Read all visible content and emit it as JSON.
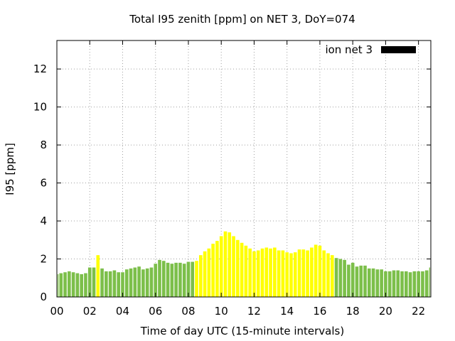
{
  "chart_data": {
    "type": "bar",
    "title": "Total I95 zenith [ppm] on NET 3, DoY=074",
    "xlabel": "Time of day UTC (15-minute intervals)",
    "ylabel": "I95 [ppm]",
    "x_tick_labels": [
      "00",
      "02",
      "04",
      "06",
      "08",
      "10",
      "12",
      "14",
      "16",
      "18",
      "20",
      "22"
    ],
    "x_tick_hours": [
      0,
      2,
      4,
      6,
      8,
      10,
      12,
      14,
      16,
      18,
      20,
      22
    ],
    "xlim": [
      0,
      22.75
    ],
    "ylim": [
      0,
      13.5
    ],
    "y_ticks": [
      0,
      2,
      4,
      6,
      8,
      10,
      12
    ],
    "grid": true,
    "legend": {
      "label": "ion net 3",
      "color": "#000000",
      "position": "top-right"
    },
    "interval_hours": 0.25,
    "bar_width_fraction": 0.8,
    "colors": {
      "green": "#7cbf4a",
      "yellow": "#ffff00"
    },
    "series": [
      {
        "name": "ion net 3",
        "start_hour": 0,
        "values": [
          1.2,
          1.25,
          1.3,
          1.35,
          1.3,
          1.25,
          1.2,
          1.25,
          1.55,
          1.55,
          2.2,
          1.5,
          1.35,
          1.35,
          1.4,
          1.3,
          1.3,
          1.45,
          1.5,
          1.55,
          1.6,
          1.45,
          1.5,
          1.55,
          1.75,
          1.95,
          1.9,
          1.8,
          1.75,
          1.8,
          1.8,
          1.75,
          1.85,
          1.85,
          1.9,
          2.2,
          2.4,
          2.55,
          2.8,
          2.95,
          3.2,
          3.45,
          3.4,
          3.2,
          3.0,
          2.85,
          2.7,
          2.55,
          2.4,
          2.45,
          2.55,
          2.6,
          2.55,
          2.6,
          2.45,
          2.45,
          2.35,
          2.3,
          2.35,
          2.5,
          2.5,
          2.45,
          2.6,
          2.75,
          2.7,
          2.45,
          2.3,
          2.2,
          2.05,
          2.0,
          1.95,
          1.7,
          1.8,
          1.6,
          1.65,
          1.65,
          1.5,
          1.5,
          1.45,
          1.45,
          1.35,
          1.35,
          1.4,
          1.4,
          1.35,
          1.35,
          1.3,
          1.35,
          1.35,
          1.35,
          1.4,
          1.55
        ],
        "colors_by_bar": [
          "green",
          "green",
          "green",
          "green",
          "green",
          "green",
          "green",
          "green",
          "green",
          "green",
          "yellow",
          "green",
          "green",
          "green",
          "green",
          "green",
          "green",
          "green",
          "green",
          "green",
          "green",
          "green",
          "green",
          "green",
          "green",
          "green",
          "green",
          "green",
          "green",
          "green",
          "green",
          "green",
          "green",
          "green",
          "yellow",
          "yellow",
          "yellow",
          "yellow",
          "yellow",
          "yellow",
          "yellow",
          "yellow",
          "yellow",
          "yellow",
          "yellow",
          "yellow",
          "yellow",
          "yellow",
          "yellow",
          "yellow",
          "yellow",
          "yellow",
          "yellow",
          "yellow",
          "yellow",
          "yellow",
          "yellow",
          "yellow",
          "yellow",
          "yellow",
          "yellow",
          "yellow",
          "yellow",
          "yellow",
          "yellow",
          "yellow",
          "yellow",
          "yellow",
          "green",
          "green",
          "green",
          "green",
          "green",
          "green",
          "green",
          "green",
          "green",
          "green",
          "green",
          "green",
          "green",
          "green",
          "green",
          "green",
          "green",
          "green",
          "green",
          "green",
          "green",
          "green",
          "green",
          "green"
        ]
      }
    ]
  }
}
